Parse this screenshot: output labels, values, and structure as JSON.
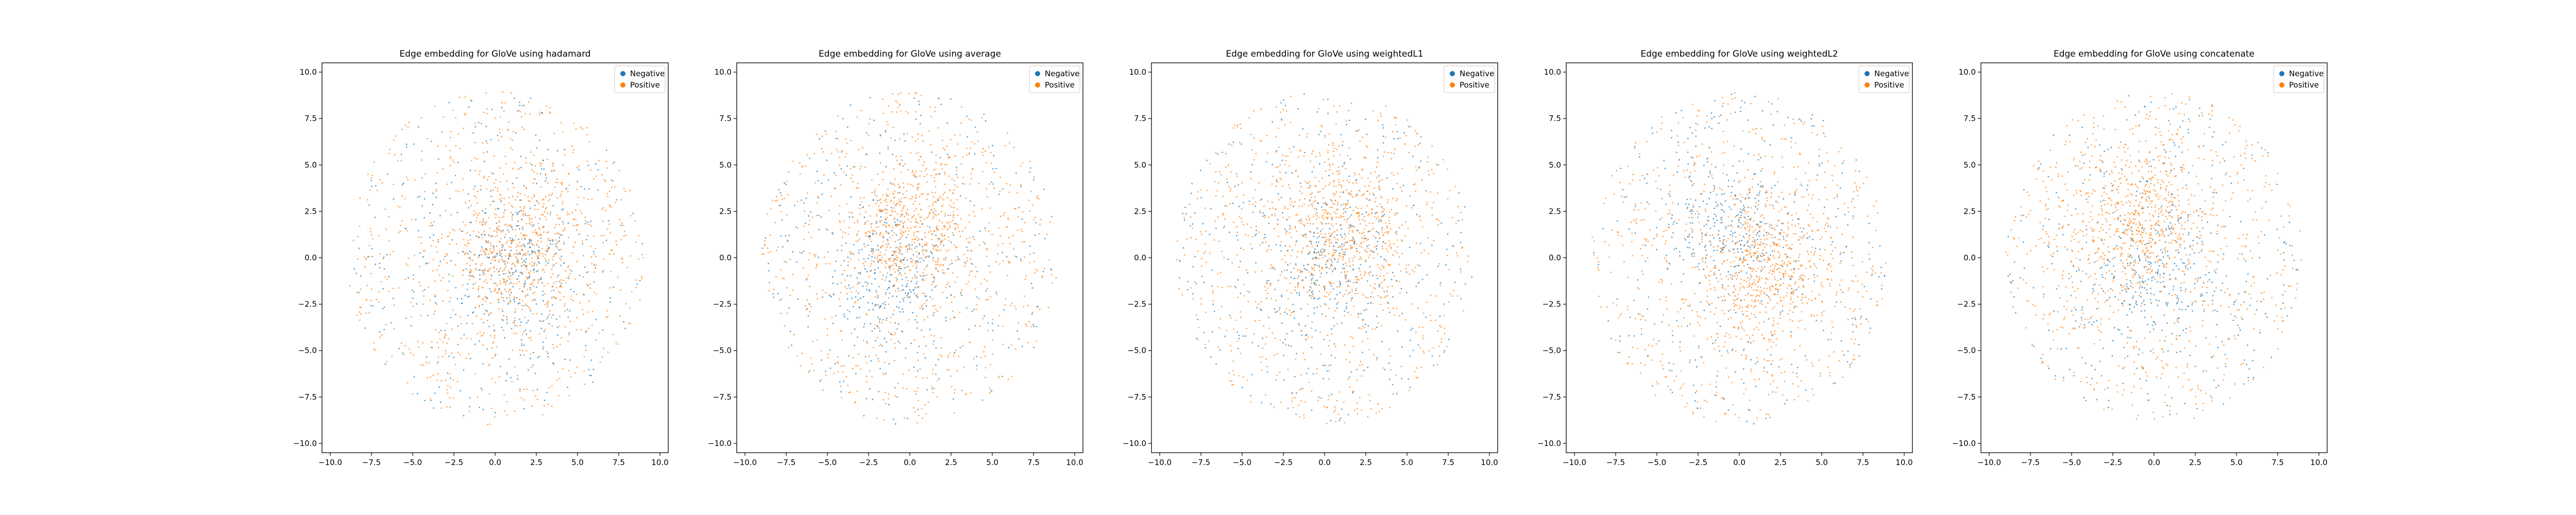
{
  "figure": {
    "background": "#ffffff",
    "colors": {
      "negative": "#1f77b4",
      "positive": "#ff7f0e",
      "axis": "#000000"
    }
  },
  "chart_data": [
    {
      "type": "scatter",
      "title": "Edge embedding for GloVe using hadamard",
      "xlim": [
        -10.5,
        10.5
      ],
      "ylim": [
        -10.5,
        10.5
      ],
      "xticks": [
        -10.0,
        -7.5,
        -5.0,
        -2.5,
        0.0,
        2.5,
        5.0,
        7.5,
        10.0
      ],
      "yticks": [
        -10.0,
        -7.5,
        -5.0,
        -2.5,
        0.0,
        2.5,
        5.0,
        7.5,
        10.0
      ],
      "grid": false,
      "legend_position": "top-right",
      "legend": [
        "Negative",
        "Positive"
      ],
      "series": [
        {
          "name": "Negative",
          "color": "#1f77b4",
          "cloud_radius": 9.0,
          "core_center": [
            1.0,
            -0.5
          ],
          "core_radius": 4.2
        },
        {
          "name": "Positive",
          "color": "#ff7f0e",
          "cloud_radius": 9.0,
          "core_center": [
            1.5,
            0.5
          ],
          "core_radius": 4.5
        }
      ]
    },
    {
      "type": "scatter",
      "title": "Edge embedding for GloVe using average",
      "xlim": [
        -10.5,
        10.5
      ],
      "ylim": [
        -10.5,
        10.5
      ],
      "xticks": [
        -10.0,
        -7.5,
        -5.0,
        -2.5,
        0.0,
        2.5,
        5.0,
        7.5,
        10.0
      ],
      "yticks": [
        -10.0,
        -7.5,
        -5.0,
        -2.5,
        0.0,
        2.5,
        5.0,
        7.5,
        10.0
      ],
      "grid": false,
      "legend_position": "top-right",
      "legend": [
        "Negative",
        "Positive"
      ],
      "series": [
        {
          "name": "Negative",
          "color": "#1f77b4",
          "cloud_radius": 9.0,
          "core_center": [
            -1.0,
            -1.0
          ],
          "core_radius": 4.0
        },
        {
          "name": "Positive",
          "color": "#ff7f0e",
          "cloud_radius": 9.0,
          "core_center": [
            0.0,
            1.5
          ],
          "core_radius": 4.5
        }
      ]
    },
    {
      "type": "scatter",
      "title": "Edge embedding for GloVe using weightedL1",
      "xlim": [
        -10.5,
        10.5
      ],
      "ylim": [
        -10.5,
        10.5
      ],
      "xticks": [
        -10.0,
        -7.5,
        -5.0,
        -2.5,
        0.0,
        2.5,
        5.0,
        7.5,
        10.0
      ],
      "yticks": [
        -10.0,
        -7.5,
        -5.0,
        -2.5,
        0.0,
        2.5,
        5.0,
        7.5,
        10.0
      ],
      "grid": false,
      "legend_position": "top-right",
      "legend": [
        "Negative",
        "Positive"
      ],
      "series": [
        {
          "name": "Negative",
          "color": "#1f77b4",
          "cloud_radius": 9.0,
          "core_center": [
            0.0,
            -0.5
          ],
          "core_radius": 4.5
        },
        {
          "name": "Positive",
          "color": "#ff7f0e",
          "cloud_radius": 9.0,
          "core_center": [
            1.0,
            1.5
          ],
          "core_radius": 4.5
        }
      ]
    },
    {
      "type": "scatter",
      "title": "Edge embedding for GloVe using weightedL2",
      "xlim": [
        -10.5,
        10.5
      ],
      "ylim": [
        -10.5,
        10.5
      ],
      "xticks": [
        -10.0,
        -7.5,
        -5.0,
        -2.5,
        0.0,
        2.5,
        5.0,
        7.5,
        10.0
      ],
      "yticks": [
        -10.0,
        -7.5,
        -5.0,
        -2.5,
        0.0,
        2.5,
        5.0,
        7.5,
        10.0
      ],
      "grid": false,
      "legend_position": "top-right",
      "legend": [
        "Negative",
        "Positive"
      ],
      "series": [
        {
          "name": "Negative",
          "color": "#1f77b4",
          "cloud_radius": 9.0,
          "core_center": [
            -0.5,
            1.5
          ],
          "core_radius": 4.2
        },
        {
          "name": "Positive",
          "color": "#ff7f0e",
          "cloud_radius": 9.0,
          "core_center": [
            1.5,
            -0.5
          ],
          "core_radius": 4.5
        }
      ]
    },
    {
      "type": "scatter",
      "title": "Edge embedding for GloVe using concatenate",
      "xlim": [
        -10.5,
        10.5
      ],
      "ylim": [
        -10.5,
        10.5
      ],
      "xticks": [
        -10.0,
        -7.5,
        -5.0,
        -2.5,
        0.0,
        2.5,
        5.0,
        7.5,
        10.0
      ],
      "yticks": [
        -10.0,
        -7.5,
        -5.0,
        -2.5,
        0.0,
        2.5,
        5.0,
        7.5,
        10.0
      ],
      "grid": false,
      "legend_position": "top-right",
      "legend": [
        "Negative",
        "Positive"
      ],
      "series": [
        {
          "name": "Negative",
          "color": "#1f77b4",
          "cloud_radius": 9.0,
          "core_center": [
            0.0,
            -1.0
          ],
          "core_radius": 4.2
        },
        {
          "name": "Positive",
          "color": "#ff7f0e",
          "cloud_radius": 9.0,
          "core_center": [
            -1.0,
            2.0
          ],
          "core_radius": 4.5
        }
      ]
    }
  ]
}
